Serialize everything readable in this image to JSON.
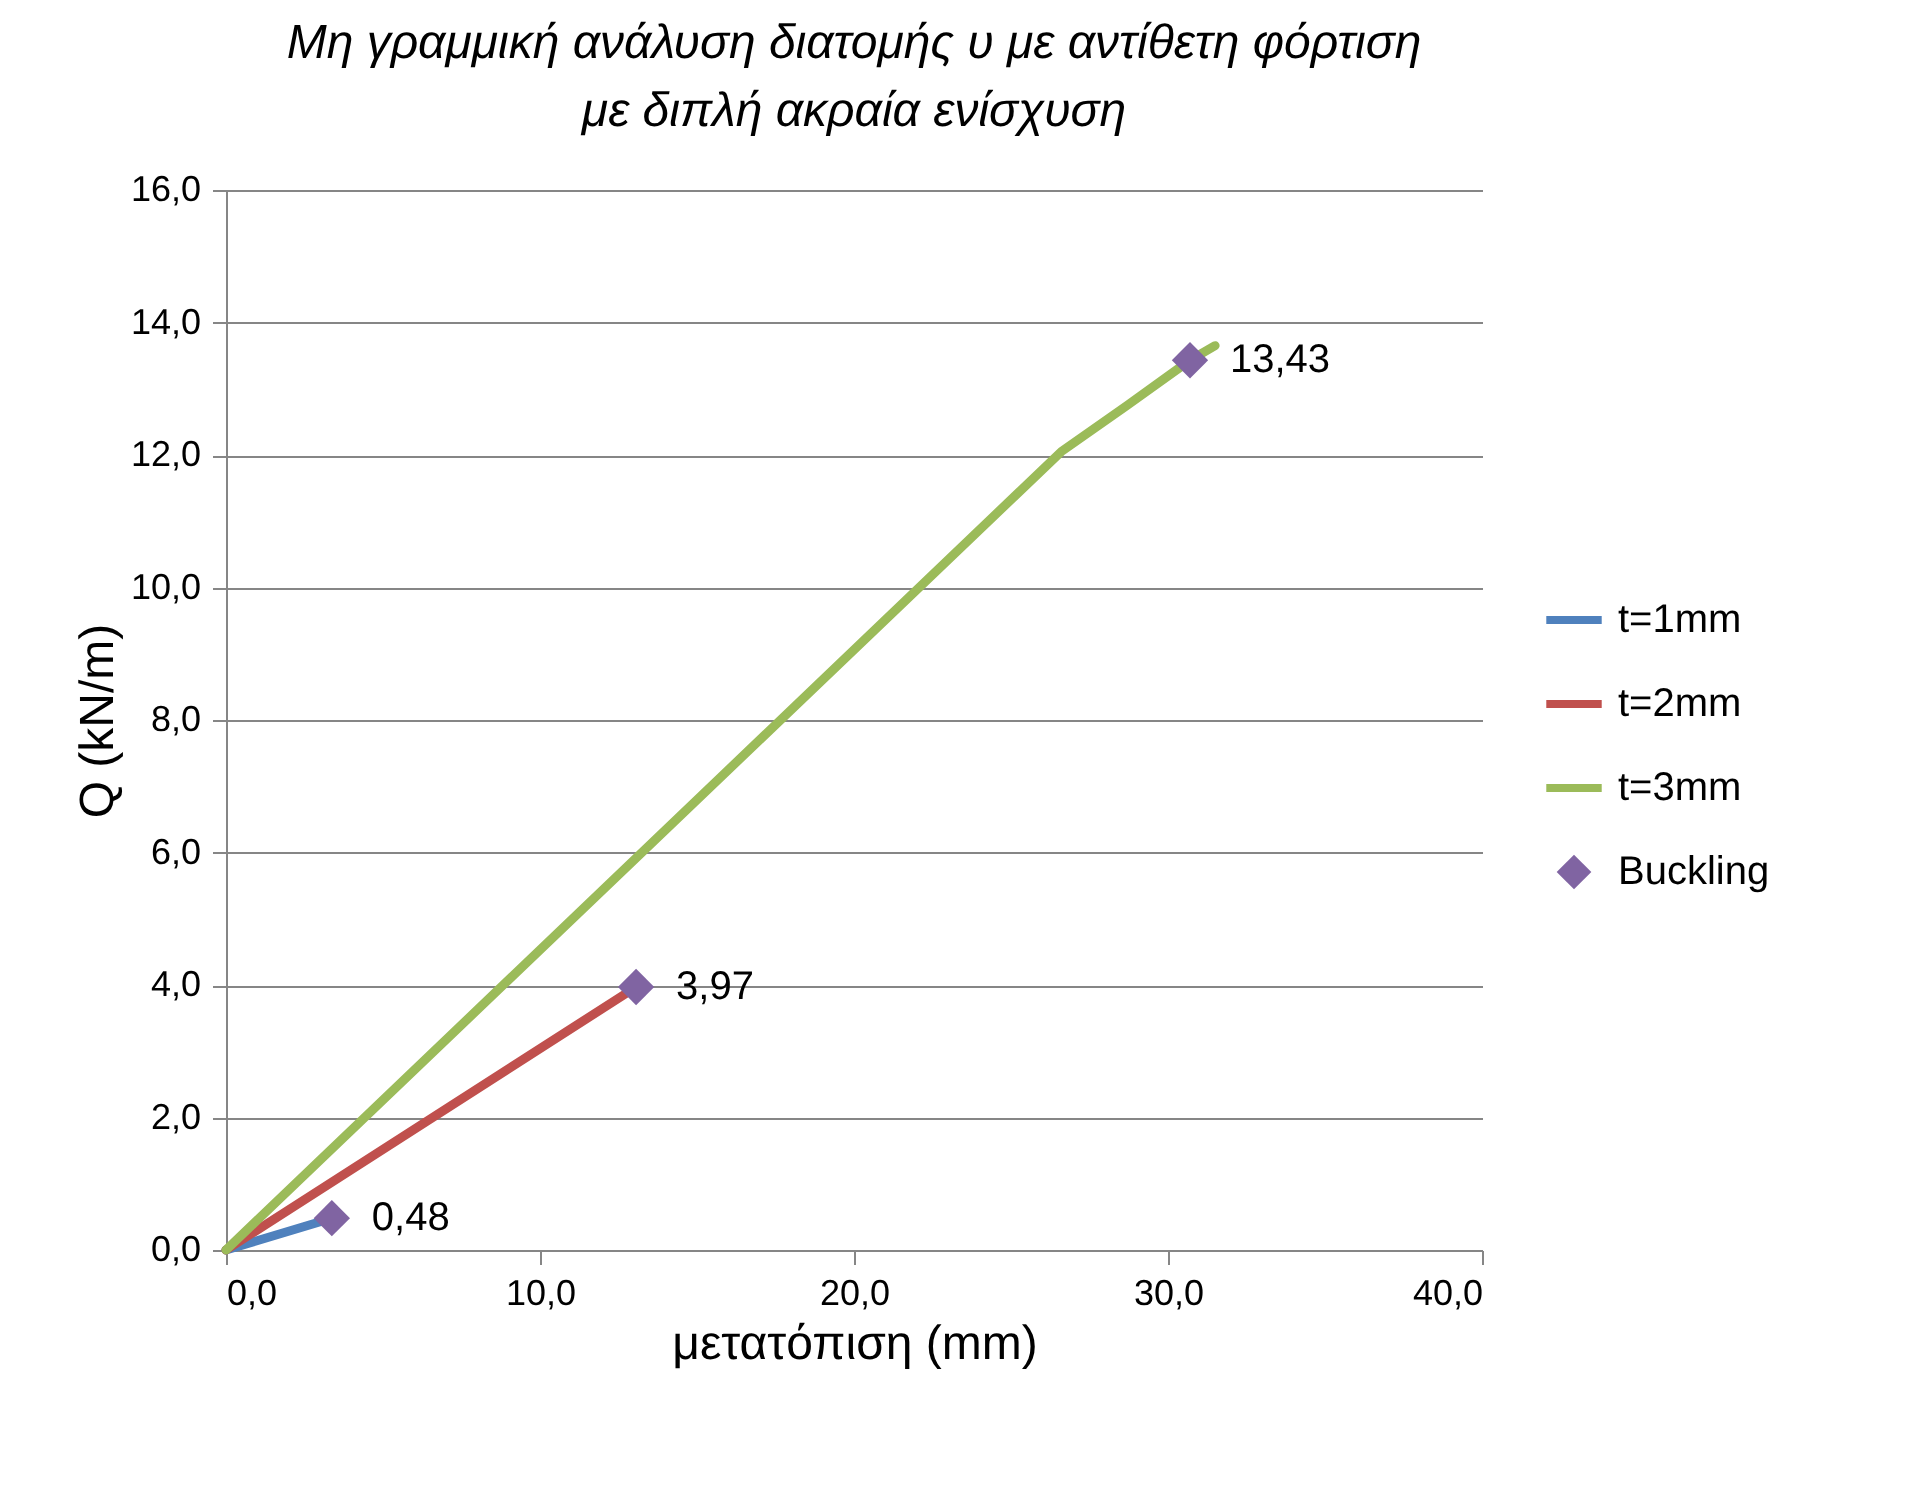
{
  "chart_data": {
    "type": "line",
    "title": "Μη γραμμική ανάλυση διατομής υ με αντίθετη φόρτιση\nμε διπλή ακραία ενίσχυση",
    "xlabel": "μετατόπιση (mm)",
    "ylabel": "Q (kN/m)",
    "xlim": [
      0,
      40
    ],
    "xticks": [
      {
        "value": 0,
        "label": "0,0"
      },
      {
        "value": 10,
        "label": "10,0"
      },
      {
        "value": 20,
        "label": "20,0"
      },
      {
        "value": 30,
        "label": "30,0"
      },
      {
        "value": 40,
        "label": "40,0"
      }
    ],
    "ylim": [
      0,
      16
    ],
    "yticks": [
      {
        "value": 0,
        "label": "0,0"
      },
      {
        "value": 2,
        "label": "2,0"
      },
      {
        "value": 4,
        "label": "4,0"
      },
      {
        "value": 6,
        "label": "6,0"
      },
      {
        "value": 8,
        "label": "8,0"
      },
      {
        "value": 10,
        "label": "10,0"
      },
      {
        "value": 12,
        "label": "12,0"
      },
      {
        "value": 14,
        "label": "14,0"
      },
      {
        "value": 16,
        "label": "16,0"
      }
    ],
    "grid": "y",
    "legend": "right",
    "line_style": "solid",
    "series": [
      {
        "name": "t=1mm",
        "color": "#4f81bd",
        "x": [
          0,
          3.37
        ],
        "values": [
          0,
          0.48
        ]
      },
      {
        "name": "t=2mm",
        "color": "#c0504d",
        "x": [
          0,
          13.06
        ],
        "values": [
          0,
          3.97
        ]
      },
      {
        "name": "t=3mm",
        "color": "#9bbb59",
        "x": [
          0,
          26.6,
          28.7,
          30.7,
          31.5
        ],
        "values": [
          0,
          12.05,
          12.75,
          13.43,
          13.65
        ]
      },
      {
        "name": "Buckling",
        "type": "scatter",
        "marker": "diamond",
        "color": "#8064a2",
        "x": [
          3.37,
          13.06,
          30.7
        ],
        "values": [
          0.48,
          3.97,
          13.43
        ],
        "value_labels": [
          "0,48",
          "3,97",
          "13,43"
        ]
      }
    ]
  }
}
